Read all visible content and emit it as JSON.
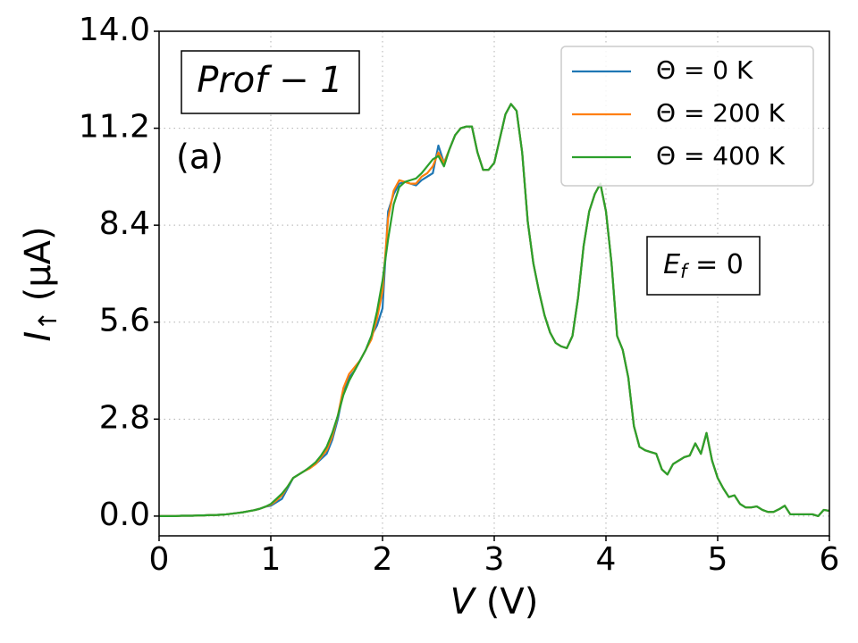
{
  "chart_data": {
    "type": "line",
    "x_label": {
      "symbol": "V",
      "unit": "(V)"
    },
    "y_label": {
      "symbol": "I",
      "subscript": "↑",
      "unit": "(μA)"
    },
    "annotations": {
      "profile": "Prof − 1",
      "panel": "(a)",
      "fermi": {
        "symbol": "E",
        "subscript": "f",
        "rest": " = 0"
      }
    },
    "x": [
      0,
      0.05,
      0.1,
      0.15,
      0.2,
      0.25,
      0.3,
      0.35,
      0.4,
      0.45,
      0.5,
      0.55,
      0.6,
      0.65,
      0.7,
      0.75,
      0.8,
      0.85,
      0.9,
      0.95,
      1,
      1.05,
      1.1,
      1.15,
      1.2,
      1.25,
      1.3,
      1.35,
      1.4,
      1.45,
      1.5,
      1.55,
      1.6,
      1.65,
      1.7,
      1.75,
      1.8,
      1.85,
      1.9,
      1.95,
      2,
      2.05,
      2.1,
      2.15,
      2.2,
      2.25,
      2.3,
      2.35,
      2.4,
      2.45,
      2.5,
      2.55,
      2.6,
      2.65,
      2.7,
      2.75,
      2.8,
      2.85,
      2.9,
      2.95,
      3,
      3.05,
      3.1,
      3.15,
      3.2,
      3.25,
      3.3,
      3.35,
      3.4,
      3.45,
      3.5,
      3.55,
      3.6,
      3.65,
      3.7,
      3.75,
      3.8,
      3.85,
      3.9,
      3.95,
      4,
      4.05,
      4.1,
      4.15,
      4.2,
      4.25,
      4.3,
      4.35,
      4.4,
      4.45,
      4.5,
      4.55,
      4.6,
      4.65,
      4.7,
      4.75,
      4.8,
      4.85,
      4.9,
      4.95,
      5,
      5.05,
      5.1,
      5.15,
      5.2,
      5.25,
      5.3,
      5.35,
      5.4,
      5.45,
      5.5,
      5.55,
      5.6,
      5.65,
      5.7,
      5.75,
      5.8,
      5.85,
      5.9,
      5.95,
      6
    ],
    "series": [
      {
        "name": "Θ = 0 K",
        "color": "#1f77b4",
        "values": [
          0,
          0,
          0,
          0,
          0.01,
          0.01,
          0.01,
          0.02,
          0.02,
          0.03,
          0.03,
          0.04,
          0.05,
          0.07,
          0.09,
          0.11,
          0.14,
          0.17,
          0.21,
          0.27,
          0.3,
          0.4,
          0.5,
          0.8,
          1.1,
          1.2,
          1.3,
          1.4,
          1.5,
          1.65,
          1.8,
          2.2,
          2.8,
          3.6,
          4.0,
          4.2,
          4.5,
          4.8,
          5.2,
          5.5,
          6.0,
          8.8,
          9.3,
          9.6,
          9.65,
          9.6,
          9.55,
          9.7,
          9.8,
          9.9,
          10.7,
          10.2,
          10.6,
          11.0,
          11.2,
          11.25,
          11.25,
          10.5,
          10.0,
          10.0,
          10.2,
          10.9,
          11.6,
          11.9,
          11.7,
          10.5,
          8.5,
          7.3,
          6.5,
          5.8,
          5.3,
          5.0,
          4.9,
          4.85,
          5.2,
          6.3,
          7.8,
          8.8,
          9.3,
          9.6,
          8.8,
          7.3,
          5.2,
          4.8,
          4.0,
          2.6,
          2.0,
          1.9,
          1.85,
          1.8,
          1.35,
          1.2,
          1.5,
          1.6,
          1.7,
          1.75,
          2.1,
          1.8,
          2.4,
          1.6,
          1.1,
          0.8,
          0.55,
          0.6,
          0.35,
          0.25,
          0.25,
          0.28,
          0.18,
          0.12,
          0.12,
          0.2,
          0.3,
          0.05,
          0.05,
          0.05,
          0.05,
          0.05,
          0.0,
          0.18,
          0.15
        ]
      },
      {
        "name": "Θ = 200 K",
        "color": "#ff7f0e",
        "values": [
          0,
          0,
          0,
          0,
          0.01,
          0.01,
          0.01,
          0.02,
          0.02,
          0.03,
          0.03,
          0.04,
          0.05,
          0.07,
          0.09,
          0.11,
          0.14,
          0.17,
          0.21,
          0.27,
          0.33,
          0.45,
          0.6,
          0.85,
          1.1,
          1.2,
          1.3,
          1.38,
          1.5,
          1.7,
          1.9,
          2.3,
          2.9,
          3.7,
          4.1,
          4.3,
          4.5,
          4.8,
          5.1,
          5.7,
          6.5,
          8.6,
          9.4,
          9.7,
          9.65,
          9.6,
          9.6,
          9.8,
          9.9,
          10.1,
          10.5,
          10.2,
          10.6,
          11.0,
          11.2,
          11.25,
          11.25,
          10.5,
          10.0,
          10.0,
          10.2,
          10.9,
          11.6,
          11.9,
          11.7,
          10.5,
          8.5,
          7.3,
          6.5,
          5.8,
          5.3,
          5.0,
          4.9,
          4.85,
          5.2,
          6.3,
          7.8,
          8.8,
          9.3,
          9.6,
          8.8,
          7.3,
          5.2,
          4.8,
          4.0,
          2.6,
          2.0,
          1.9,
          1.85,
          1.8,
          1.35,
          1.2,
          1.5,
          1.6,
          1.7,
          1.75,
          2.1,
          1.8,
          2.4,
          1.6,
          1.1,
          0.8,
          0.55,
          0.6,
          0.35,
          0.25,
          0.25,
          0.28,
          0.18,
          0.12,
          0.12,
          0.2,
          0.3,
          0.05,
          0.05,
          0.05,
          0.05,
          0.05,
          0.0,
          0.18,
          0.15
        ]
      },
      {
        "name": "Θ = 400 K",
        "color": "#2ca02c",
        "values": [
          0,
          0,
          0,
          0,
          0.01,
          0.01,
          0.01,
          0.02,
          0.02,
          0.03,
          0.03,
          0.04,
          0.05,
          0.07,
          0.09,
          0.11,
          0.14,
          0.17,
          0.21,
          0.27,
          0.35,
          0.5,
          0.65,
          0.85,
          1.1,
          1.2,
          1.3,
          1.42,
          1.55,
          1.75,
          2.0,
          2.4,
          2.9,
          3.5,
          3.9,
          4.2,
          4.5,
          4.8,
          5.2,
          5.9,
          6.8,
          8.0,
          9.0,
          9.5,
          9.65,
          9.7,
          9.75,
          9.9,
          10.1,
          10.3,
          10.4,
          10.1,
          10.6,
          11.0,
          11.2,
          11.25,
          11.25,
          10.5,
          10.0,
          10.0,
          10.2,
          10.9,
          11.6,
          11.9,
          11.7,
          10.5,
          8.5,
          7.3,
          6.5,
          5.8,
          5.3,
          5.0,
          4.9,
          4.85,
          5.2,
          6.3,
          7.8,
          8.8,
          9.3,
          9.6,
          8.8,
          7.3,
          5.2,
          4.8,
          4.0,
          2.6,
          2.0,
          1.9,
          1.85,
          1.8,
          1.35,
          1.2,
          1.5,
          1.6,
          1.7,
          1.75,
          2.1,
          1.8,
          2.4,
          1.6,
          1.1,
          0.8,
          0.55,
          0.6,
          0.35,
          0.25,
          0.25,
          0.28,
          0.18,
          0.12,
          0.12,
          0.2,
          0.3,
          0.05,
          0.05,
          0.05,
          0.05,
          0.05,
          0.0,
          0.18,
          0.15
        ]
      }
    ],
    "xlim": [
      0,
      6
    ],
    "xticks": [
      0,
      1,
      2,
      3,
      4,
      5,
      6
    ],
    "ylim": [
      -0.57,
      14.0
    ],
    "yticks": [
      {
        "value": 0,
        "label": "0.0"
      },
      2.8,
      5.6,
      8.4,
      11.2,
      {
        "value": 14,
        "label": "14.0"
      }
    ],
    "grid": true,
    "legend": "upper right"
  }
}
